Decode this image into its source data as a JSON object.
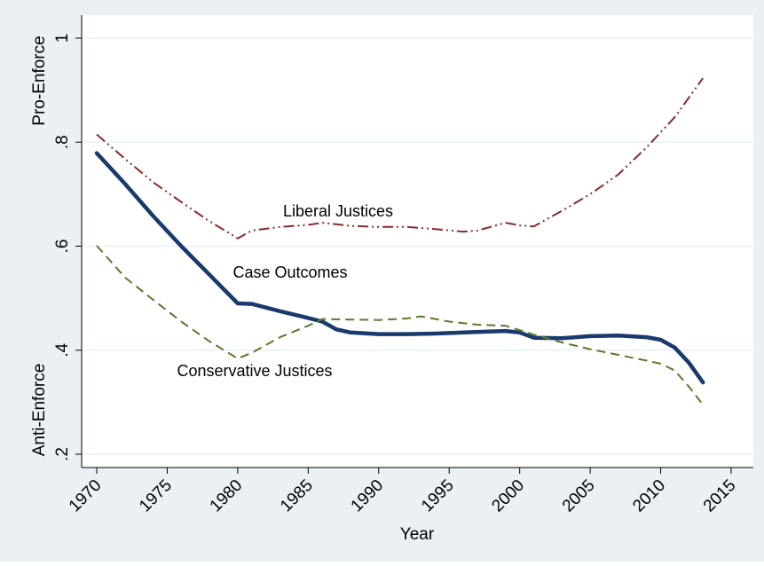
{
  "chart_data": {
    "type": "line",
    "title": "",
    "xlabel": "Year",
    "ylabel_top": "Pro-Enforce",
    "ylabel_bottom": "Anti-Enforce",
    "xlim": [
      1970,
      2015
    ],
    "ylim": [
      0.2,
      1.0
    ],
    "x_ticks": [
      1970,
      1975,
      1980,
      1985,
      1990,
      1995,
      2000,
      2005,
      2010,
      2015
    ],
    "y_ticks": [
      0.2,
      0.4,
      0.6,
      0.8,
      1.0
    ],
    "y_tick_labels": [
      ".2",
      ".4",
      ".6",
      ".8",
      "1"
    ],
    "grid": true,
    "legend": "none",
    "annotations": [
      {
        "text": "Liberal Justices",
        "x": 1989,
        "y": 0.66
      },
      {
        "text": "Case Outcomes",
        "x": 1986,
        "y": 0.545
      },
      {
        "text": "Conservative Justices",
        "x": 1985,
        "y": 0.36
      }
    ],
    "series": [
      {
        "color": "#8b2a2a",
        "dash": "12,4,2,4,2,4",
        "width": 2,
        "points": [
          [
            1970,
            0.815
          ],
          [
            1972,
            0.768
          ],
          [
            1974,
            0.723
          ],
          [
            1976,
            0.685
          ],
          [
            1978,
            0.648
          ],
          [
            1980,
            0.615
          ],
          [
            1981,
            0.63
          ],
          [
            1983,
            0.637
          ],
          [
            1985,
            0.641
          ],
          [
            1986,
            0.645
          ],
          [
            1988,
            0.639
          ],
          [
            1990,
            0.637
          ],
          [
            1992,
            0.637
          ],
          [
            1994,
            0.633
          ],
          [
            1996,
            0.628
          ],
          [
            1997,
            0.63
          ],
          [
            1999,
            0.645
          ],
          [
            2000,
            0.64
          ],
          [
            2001,
            0.638
          ],
          [
            2003,
            0.668
          ],
          [
            2005,
            0.7
          ],
          [
            2007,
            0.738
          ],
          [
            2009,
            0.79
          ],
          [
            2011,
            0.848
          ],
          [
            2013,
            0.923
          ]
        ]
      },
      {
        "color": "#1a3a6b",
        "dash": "",
        "width": 4.5,
        "points": [
          [
            1970,
            0.779
          ],
          [
            1972,
            0.72
          ],
          [
            1974,
            0.658
          ],
          [
            1976,
            0.6
          ],
          [
            1978,
            0.545
          ],
          [
            1980,
            0.49
          ],
          [
            1981,
            0.489
          ],
          [
            1983,
            0.475
          ],
          [
            1985,
            0.462
          ],
          [
            1986,
            0.455
          ],
          [
            1987,
            0.44
          ],
          [
            1988,
            0.434
          ],
          [
            1990,
            0.431
          ],
          [
            1992,
            0.431
          ],
          [
            1994,
            0.432
          ],
          [
            1996,
            0.434
          ],
          [
            1998,
            0.436
          ],
          [
            1999,
            0.437
          ],
          [
            2000,
            0.434
          ],
          [
            2001,
            0.424
          ],
          [
            2003,
            0.423
          ],
          [
            2005,
            0.427
          ],
          [
            2007,
            0.428
          ],
          [
            2009,
            0.425
          ],
          [
            2010,
            0.42
          ],
          [
            2011,
            0.405
          ],
          [
            2012,
            0.376
          ],
          [
            2013,
            0.338
          ]
        ]
      },
      {
        "color": "#5a7a2a",
        "dash": "10,6",
        "width": 2,
        "points": [
          [
            1970,
            0.601
          ],
          [
            1972,
            0.54
          ],
          [
            1974,
            0.497
          ],
          [
            1976,
            0.455
          ],
          [
            1978,
            0.417
          ],
          [
            1980,
            0.384
          ],
          [
            1981,
            0.395
          ],
          [
            1983,
            0.425
          ],
          [
            1985,
            0.447
          ],
          [
            1986,
            0.46
          ],
          [
            1988,
            0.459
          ],
          [
            1990,
            0.458
          ],
          [
            1992,
            0.461
          ],
          [
            1993,
            0.465
          ],
          [
            1995,
            0.455
          ],
          [
            1997,
            0.449
          ],
          [
            1999,
            0.447
          ],
          [
            2001,
            0.43
          ],
          [
            2003,
            0.415
          ],
          [
            2005,
            0.402
          ],
          [
            2007,
            0.391
          ],
          [
            2009,
            0.38
          ],
          [
            2010,
            0.374
          ],
          [
            2011,
            0.361
          ],
          [
            2012,
            0.33
          ],
          [
            2013,
            0.295
          ]
        ]
      }
    ]
  }
}
